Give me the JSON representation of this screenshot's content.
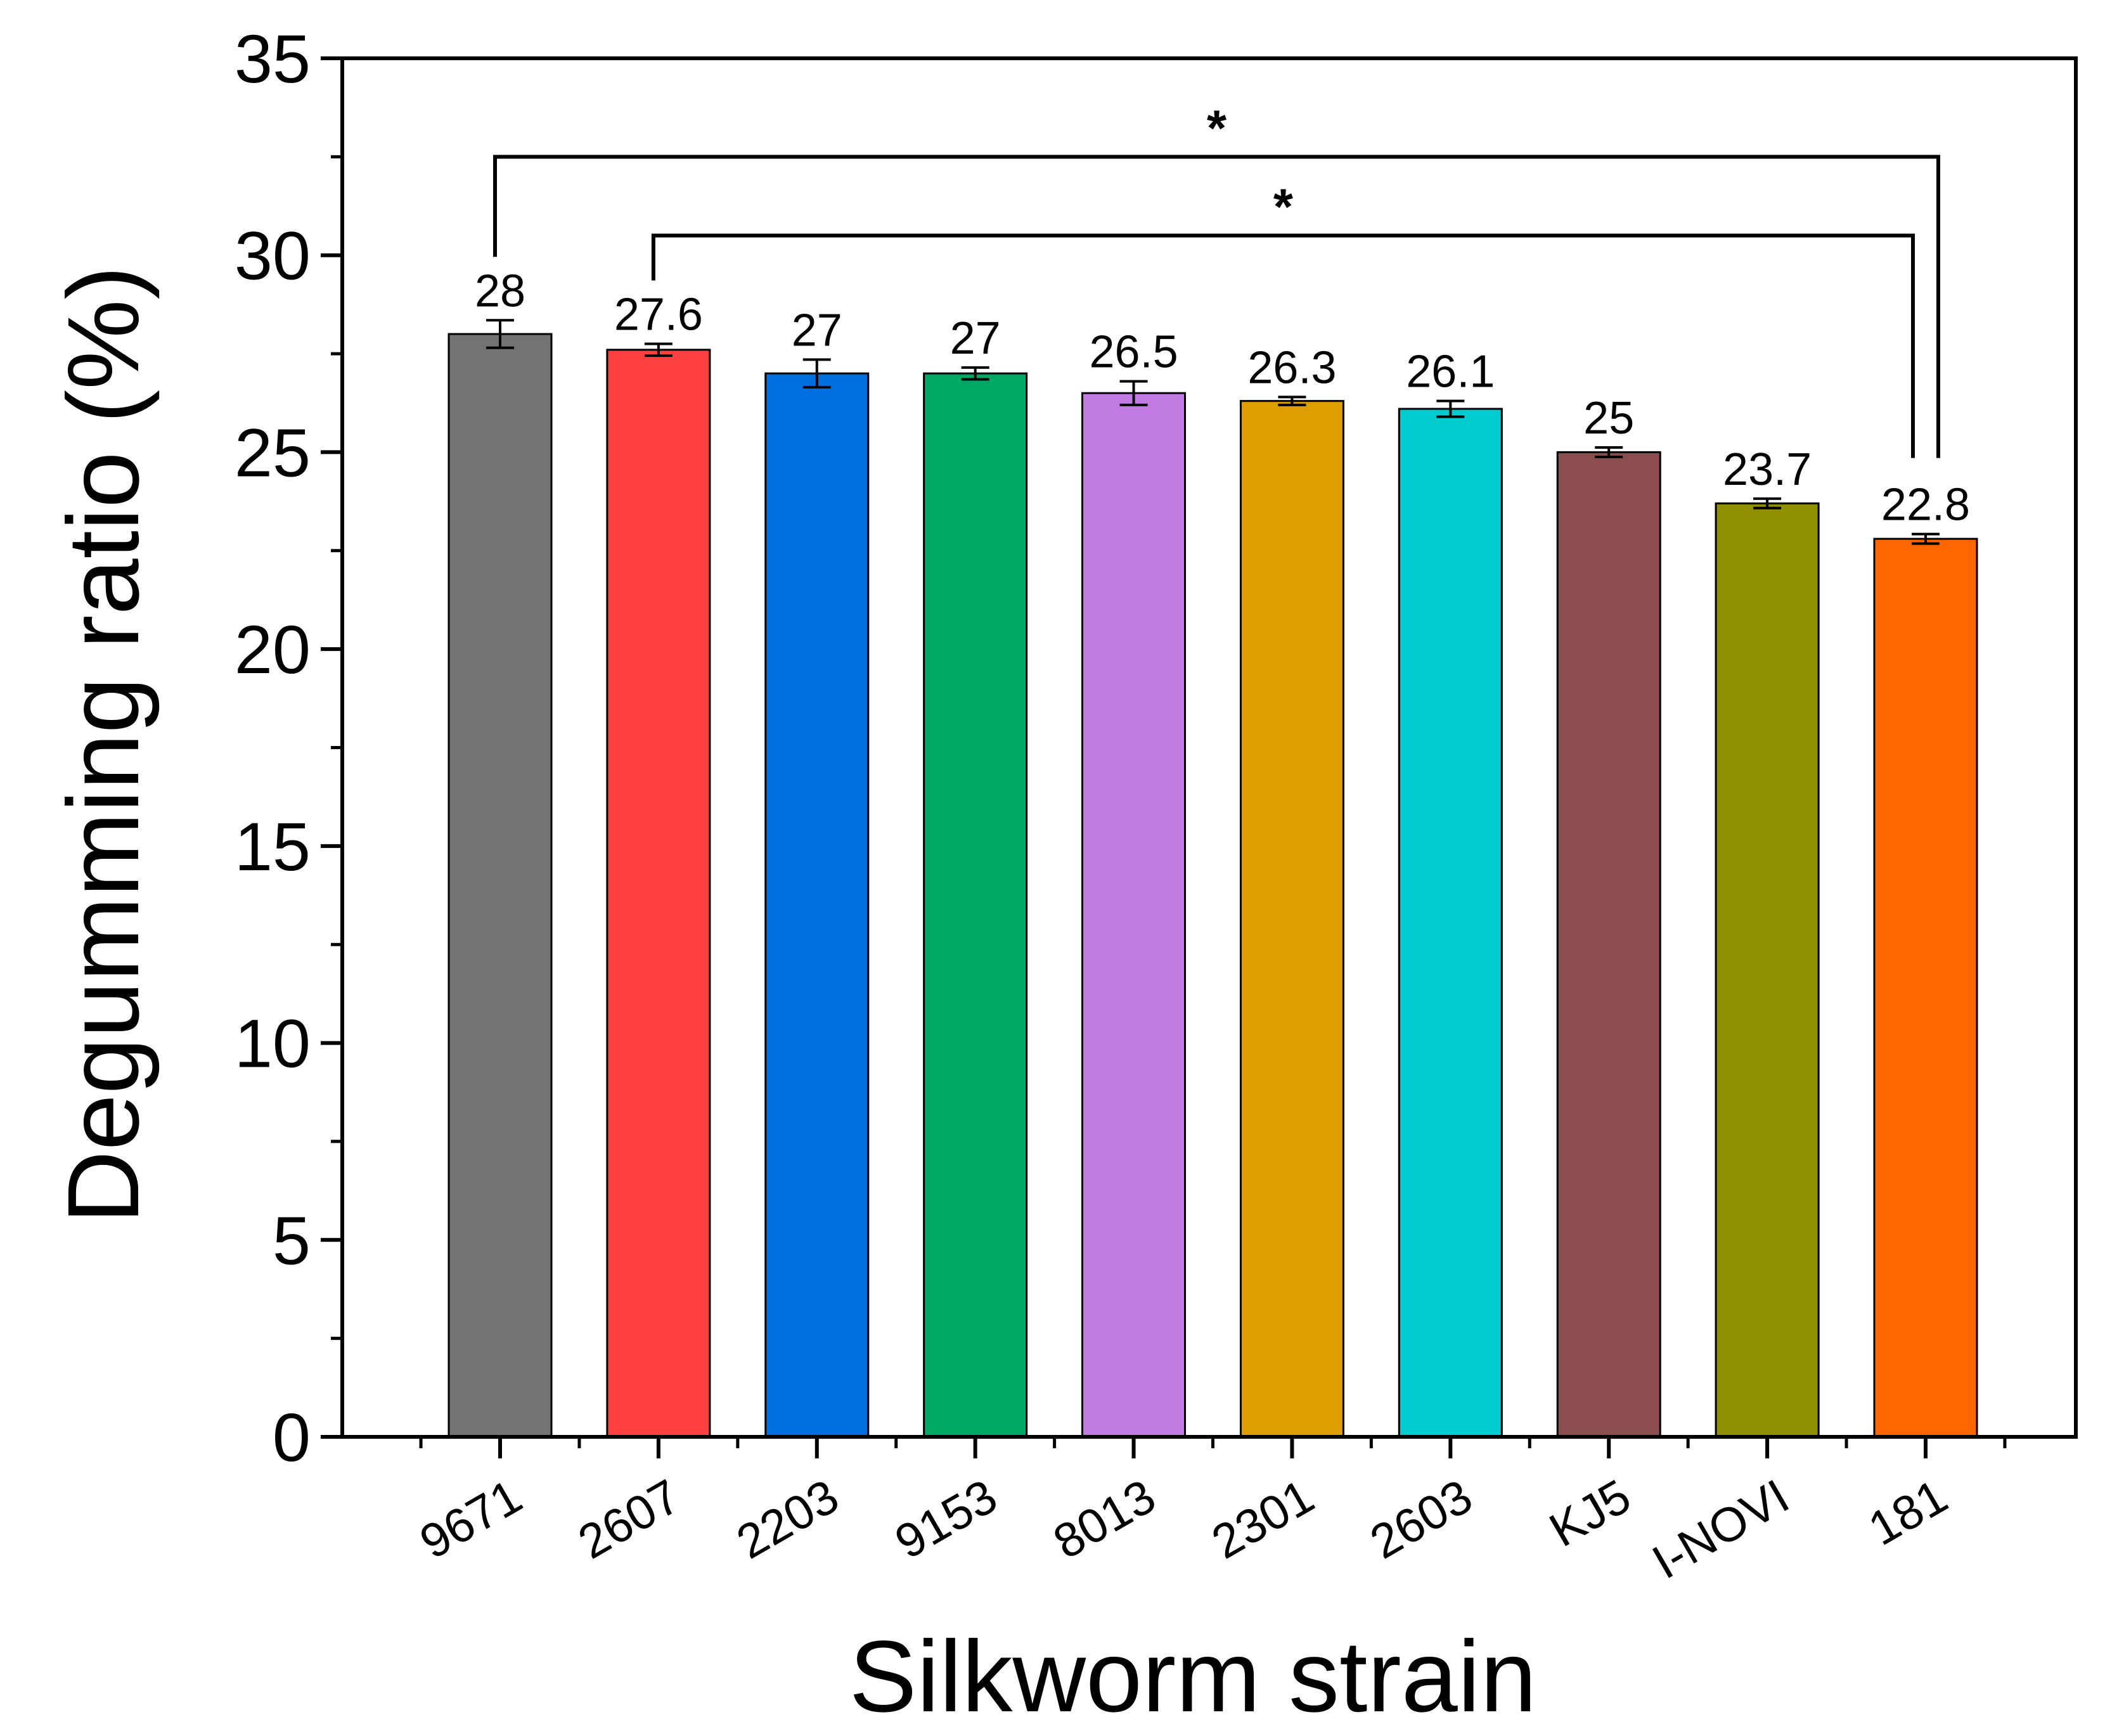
{
  "chart_data": {
    "type": "bar",
    "title": "",
    "xlabel": "Silkworm strain",
    "ylabel": "Degumming ratio (%)",
    "ylim": [
      0,
      35
    ],
    "yticks": [
      "0",
      "5",
      "10",
      "15",
      "20",
      "25",
      "30",
      "35"
    ],
    "grid": false,
    "categories": [
      "9671",
      "2607",
      "2203",
      "9153",
      "8013",
      "2301",
      "2603",
      "KJ5",
      "I-NOVI",
      "181"
    ],
    "values": [
      28,
      27.6,
      27,
      27,
      26.5,
      26.3,
      26.1,
      25,
      23.7,
      22.8
    ],
    "value_labels": [
      "28",
      "27.6",
      "27",
      "27",
      "26.5",
      "26.3",
      "26.1",
      "25",
      "23.7",
      "22.8"
    ],
    "errors": [
      0.35,
      0.15,
      0.35,
      0.15,
      0.3,
      0.1,
      0.2,
      0.12,
      0.12,
      0.12
    ],
    "colors": [
      "#737373",
      "#FF4040",
      "#0070E0",
      "#00AA65",
      "#C37BE4",
      "#DE9E00",
      "#00CBCF",
      "#8B4D4E",
      "#909000",
      "#FF6600"
    ],
    "significance": [
      {
        "from": "9671",
        "to": "181",
        "label": "*",
        "level": 32.5
      },
      {
        "from": "2607",
        "to": "181",
        "label": "*",
        "level": 30.5
      }
    ]
  }
}
